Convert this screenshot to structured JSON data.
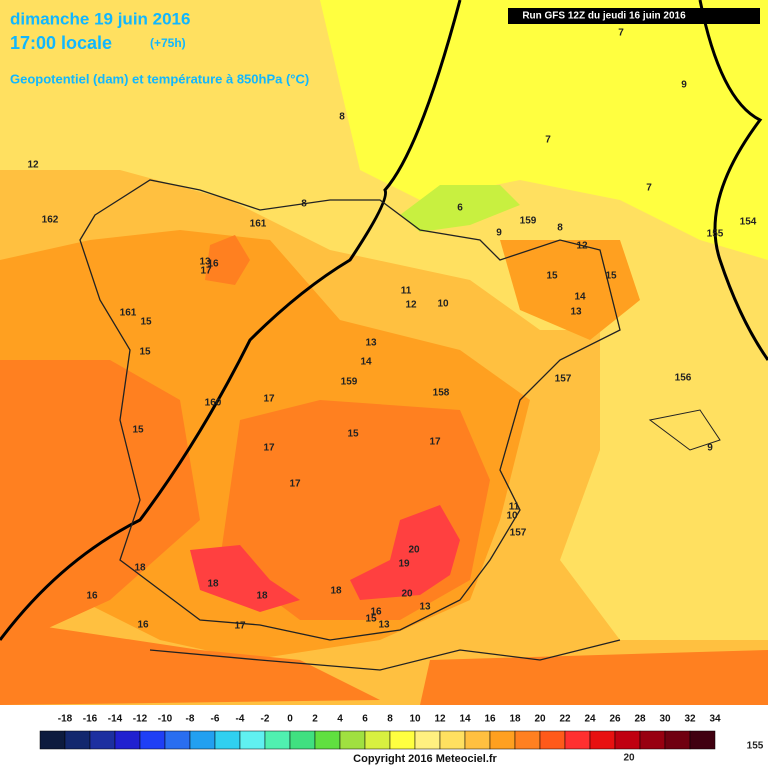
{
  "header": {
    "date": "dimanche 19 juin 2016",
    "time": "17:00 locale",
    "lead": "(+75h)",
    "subtitle": "Geopotentiel (dam) et température à 850hPa (°C)",
    "run": "Run GFS 12Z du jeudi 16 juin 2016"
  },
  "contour_labels": [
    7,
    9,
    8,
    7,
    12,
    7,
    162,
    8,
    6,
    159,
    8,
    161,
    9,
    155,
    154,
    12,
    13,
    16,
    17,
    15,
    15,
    11,
    10,
    12,
    14,
    13,
    161,
    15,
    15,
    13,
    14,
    159,
    157,
    156,
    158,
    160,
    17,
    15,
    15,
    17,
    17,
    9,
    17,
    11,
    10,
    157,
    20,
    19,
    18,
    18,
    18,
    18,
    20,
    13,
    16,
    15,
    13,
    16,
    16,
    17,
    20,
    155
  ],
  "colorbar": {
    "labels": [
      -18,
      -16,
      -14,
      -12,
      -10,
      -8,
      -6,
      -4,
      -2,
      0,
      2,
      4,
      6,
      8,
      10,
      12,
      14,
      16,
      18,
      20,
      22,
      24,
      26,
      28,
      30,
      32,
      34
    ],
    "colors": [
      "#0d1b3e",
      "#13286e",
      "#1c2fa0",
      "#2020d0",
      "#1f3ff5",
      "#2a6ef0",
      "#22a0f0",
      "#30d0f0",
      "#60f0f0",
      "#50f0b0",
      "#40e080",
      "#60e040",
      "#a0e040",
      "#d8f040",
      "#ffff40",
      "#fff080",
      "#ffe060",
      "#ffc040",
      "#ffa020",
      "#ff8020",
      "#ff5a1a",
      "#ff3030",
      "#e81010",
      "#c00010",
      "#980010",
      "#700010",
      "#400010"
    ]
  },
  "copyright": "Copyright 2016 Meteociel.fr"
}
